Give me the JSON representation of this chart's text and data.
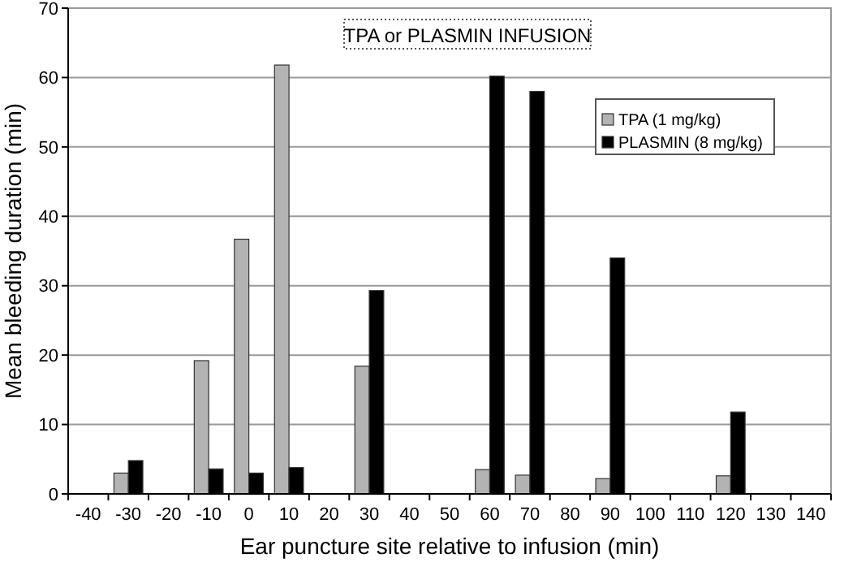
{
  "chart_data": {
    "type": "bar",
    "title": "TPA or PLASMIN INFUSION",
    "xlabel": "Ear puncture site relative to infusion (min)",
    "ylabel": "Mean bleeding duration (min)",
    "categories": [
      "-40",
      "-30",
      "-20",
      "-10",
      "0",
      "10",
      "20",
      "30",
      "40",
      "50",
      "60",
      "70",
      "80",
      "90",
      "100",
      "110",
      "120",
      "130",
      "140"
    ],
    "series": [
      {
        "name": "TPA (1 mg/kg)",
        "color": "#b3b3b3",
        "values": [
          null,
          3.0,
          null,
          19.2,
          36.7,
          61.8,
          null,
          18.4,
          null,
          null,
          3.5,
          2.7,
          null,
          2.2,
          null,
          null,
          2.6,
          null,
          null
        ]
      },
      {
        "name": "PLASMIN (8 mg/kg)",
        "color": "#000000",
        "values": [
          null,
          4.8,
          null,
          3.6,
          3.0,
          3.8,
          null,
          29.3,
          null,
          null,
          60.2,
          58.0,
          null,
          34.0,
          null,
          null,
          11.8,
          null,
          null
        ]
      }
    ],
    "ylim": [
      0,
      70
    ],
    "yticks": [
      0,
      10,
      20,
      30,
      40,
      50,
      60,
      70
    ],
    "grid": "y",
    "legend": "top right"
  }
}
